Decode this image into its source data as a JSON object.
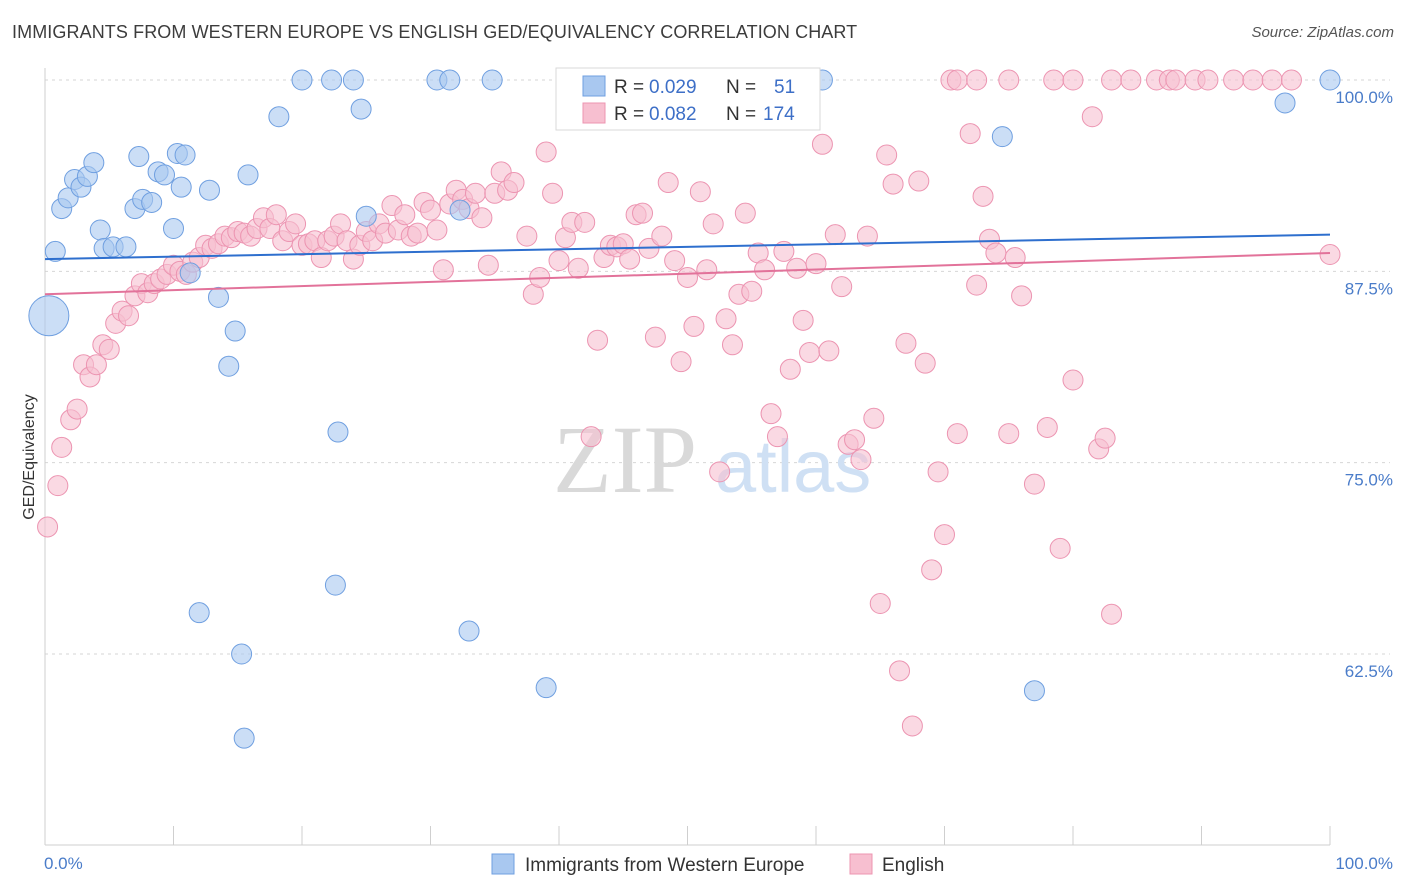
{
  "title": "IMMIGRANTS FROM WESTERN EUROPE VS ENGLISH GED/EQUIVALENCY CORRELATION CHART",
  "source": "Source: ZipAtlas.com",
  "watermark": {
    "zip": "ZIP",
    "atlas": "atlas"
  },
  "colors": {
    "blue_fill": "#a9c8f0",
    "blue_stroke": "#6f9fe0",
    "blue_line": "#2e6fce",
    "pink_fill": "#f7bfd0",
    "pink_stroke": "#ec94b1",
    "pink_line": "#e2729a",
    "grid": "#d6d6d6",
    "tick_text": "#4a7cc9"
  },
  "legend": {
    "series": [
      {
        "r_label": "R =",
        "r_value": "0.029",
        "n_label": "N =",
        "n_value": "51"
      },
      {
        "r_label": "R =",
        "r_value": "0.082",
        "n_label": "N =",
        "n_value": "174"
      }
    ]
  },
  "chart_data": {
    "type": "scatter",
    "title": "IMMIGRANTS FROM WESTERN EUROPE VS ENGLISH GED/EQUIVALENCY CORRELATION CHART",
    "xlabel": "",
    "ylabel": "GED/Equivalency",
    "xlim": [
      0,
      100
    ],
    "ylim": [
      51.5,
      102
    ],
    "x_tick_labels": [
      "0.0%",
      "100.0%"
    ],
    "y_ticks": [
      100,
      87.5,
      75,
      62.5
    ],
    "y_tick_labels": [
      "100.0%",
      "87.5%",
      "75.0%",
      "62.5%"
    ],
    "legend_position": "top-center",
    "series": [
      {
        "name": "Immigrants from Western Europe",
        "color": "blue",
        "trend": {
          "y_at_0": 88.3,
          "y_at_100": 89.9
        },
        "points": [
          [
            0.8,
            88.8
          ],
          [
            1.3,
            91.6
          ],
          [
            1.8,
            92.3
          ],
          [
            2.3,
            93.5
          ],
          [
            2.8,
            93.0
          ],
          [
            3.3,
            93.7
          ],
          [
            3.8,
            94.6
          ],
          [
            4.3,
            90.2
          ],
          [
            4.6,
            89.0
          ],
          [
            5.3,
            89.1
          ],
          [
            6.3,
            89.1
          ],
          [
            7.0,
            91.6
          ],
          [
            7.3,
            95.0
          ],
          [
            7.6,
            92.2
          ],
          [
            8.3,
            92.0
          ],
          [
            8.8,
            94.0
          ],
          [
            9.3,
            93.8
          ],
          [
            10.0,
            90.3
          ],
          [
            10.3,
            95.2
          ],
          [
            10.6,
            93.0
          ],
          [
            10.9,
            95.1
          ],
          [
            11.3,
            87.4
          ],
          [
            12.8,
            92.8
          ],
          [
            13.5,
            85.8
          ],
          [
            14.3,
            81.3
          ],
          [
            14.8,
            83.6
          ],
          [
            15.8,
            93.8
          ],
          [
            18.2,
            97.6
          ],
          [
            20.0,
            100
          ],
          [
            22.3,
            100
          ],
          [
            22.6,
            67.0
          ],
          [
            22.8,
            77.0
          ],
          [
            24.0,
            100
          ],
          [
            24.6,
            98.1
          ],
          [
            25.0,
            91.1
          ],
          [
            30.5,
            100
          ],
          [
            31.5,
            100
          ],
          [
            32.3,
            91.5
          ],
          [
            33.0,
            64.0
          ],
          [
            34.8,
            100
          ],
          [
            39.0,
            60.3
          ],
          [
            15.5,
            57.0
          ],
          [
            15.3,
            62.5
          ],
          [
            12.0,
            65.2
          ],
          [
            77.0,
            60.1
          ],
          [
            59.5,
            100
          ],
          [
            60.5,
            100
          ],
          [
            74.5,
            96.3
          ],
          [
            96.5,
            98.5
          ],
          [
            100,
            100
          ],
          [
            0.3,
            84.6
          ]
        ],
        "sizes": [
          10,
          10,
          10,
          10,
          10,
          10,
          10,
          10,
          10,
          10,
          10,
          10,
          10,
          10,
          10,
          10,
          10,
          10,
          10,
          10,
          10,
          10,
          10,
          10,
          10,
          10,
          10,
          10,
          10,
          10,
          10,
          10,
          10,
          10,
          10,
          10,
          10,
          10,
          10,
          10,
          10,
          10,
          10,
          10,
          10,
          10,
          10,
          10,
          10,
          10,
          20
        ]
      },
      {
        "name": "English",
        "color": "pink",
        "trend": {
          "y_at_0": 86.0,
          "y_at_100": 88.7
        },
        "points": [
          [
            0.2,
            70.8
          ],
          [
            1.0,
            73.5
          ],
          [
            1.3,
            76.0
          ],
          [
            2.0,
            77.8
          ],
          [
            2.5,
            78.5
          ],
          [
            3.0,
            81.4
          ],
          [
            3.5,
            80.6
          ],
          [
            4.0,
            81.4
          ],
          [
            4.5,
            82.7
          ],
          [
            5.0,
            82.4
          ],
          [
            5.5,
            84.1
          ],
          [
            6.0,
            84.9
          ],
          [
            6.5,
            84.6
          ],
          [
            7.0,
            85.9
          ],
          [
            7.5,
            86.7
          ],
          [
            8.0,
            86.1
          ],
          [
            8.5,
            86.7
          ],
          [
            9.0,
            87.0
          ],
          [
            9.5,
            87.3
          ],
          [
            10.0,
            87.9
          ],
          [
            10.5,
            87.5
          ],
          [
            11.0,
            87.3
          ],
          [
            11.5,
            88.1
          ],
          [
            12.0,
            88.4
          ],
          [
            12.5,
            89.2
          ],
          [
            13.0,
            89.0
          ],
          [
            13.5,
            89.3
          ],
          [
            14.0,
            89.8
          ],
          [
            14.5,
            89.7
          ],
          [
            15.0,
            90.1
          ],
          [
            15.5,
            90.0
          ],
          [
            16.0,
            89.8
          ],
          [
            16.5,
            90.3
          ],
          [
            17.0,
            91.0
          ],
          [
            17.5,
            90.3
          ],
          [
            18.0,
            91.2
          ],
          [
            18.5,
            89.5
          ],
          [
            19.0,
            90.1
          ],
          [
            19.5,
            90.6
          ],
          [
            20.0,
            89.2
          ],
          [
            20.5,
            89.3
          ],
          [
            21.0,
            89.5
          ],
          [
            21.5,
            88.4
          ],
          [
            22.0,
            89.5
          ],
          [
            22.5,
            89.8
          ],
          [
            23.0,
            90.6
          ],
          [
            23.5,
            89.5
          ],
          [
            24.0,
            88.3
          ],
          [
            24.5,
            89.2
          ],
          [
            25.0,
            90.1
          ],
          [
            25.5,
            89.5
          ],
          [
            26.0,
            90.6
          ],
          [
            26.5,
            90.0
          ],
          [
            27.0,
            91.8
          ],
          [
            27.5,
            90.2
          ],
          [
            28.0,
            91.2
          ],
          [
            28.5,
            89.8
          ],
          [
            29.0,
            90.0
          ],
          [
            29.5,
            92.0
          ],
          [
            30.0,
            91.5
          ],
          [
            30.5,
            90.2
          ],
          [
            31.0,
            87.6
          ],
          [
            31.5,
            91.9
          ],
          [
            32.0,
            92.8
          ],
          [
            32.5,
            92.2
          ],
          [
            33.0,
            91.6
          ],
          [
            33.5,
            92.6
          ],
          [
            34.0,
            91.0
          ],
          [
            34.5,
            87.9
          ],
          [
            35.0,
            92.6
          ],
          [
            35.5,
            94.0
          ],
          [
            36.0,
            92.8
          ],
          [
            36.5,
            93.3
          ],
          [
            37.5,
            89.8
          ],
          [
            38.0,
            86.0
          ],
          [
            38.5,
            87.1
          ],
          [
            39.0,
            95.3
          ],
          [
            39.5,
            92.6
          ],
          [
            40.0,
            88.2
          ],
          [
            40.5,
            89.7
          ],
          [
            41.0,
            90.7
          ],
          [
            41.5,
            87.7
          ],
          [
            42.0,
            90.7
          ],
          [
            42.5,
            76.7
          ],
          [
            43.0,
            83.0
          ],
          [
            43.5,
            88.4
          ],
          [
            44.0,
            89.2
          ],
          [
            44.5,
            89.1
          ],
          [
            45.0,
            89.3
          ],
          [
            45.5,
            88.3
          ],
          [
            46.0,
            91.2
          ],
          [
            46.5,
            91.3
          ],
          [
            47.0,
            89.0
          ],
          [
            47.5,
            83.2
          ],
          [
            48.0,
            89.8
          ],
          [
            48.5,
            93.3
          ],
          [
            49.0,
            88.2
          ],
          [
            49.5,
            81.6
          ],
          [
            50.0,
            87.1
          ],
          [
            50.5,
            83.9
          ],
          [
            51.0,
            92.7
          ],
          [
            51.5,
            87.6
          ],
          [
            52.0,
            90.6
          ],
          [
            52.5,
            74.4
          ],
          [
            53.0,
            84.4
          ],
          [
            53.5,
            82.7
          ],
          [
            54.0,
            86.0
          ],
          [
            54.5,
            91.3
          ],
          [
            55.0,
            86.2
          ],
          [
            55.5,
            88.7
          ],
          [
            56.0,
            87.6
          ],
          [
            56.5,
            78.2
          ],
          [
            57.0,
            76.7
          ],
          [
            57.5,
            88.8
          ],
          [
            58.0,
            81.1
          ],
          [
            58.5,
            87.7
          ],
          [
            59.0,
            84.3
          ],
          [
            59.5,
            82.2
          ],
          [
            60.0,
            88.0
          ],
          [
            60.5,
            95.8
          ],
          [
            61.0,
            82.3
          ],
          [
            61.5,
            89.9
          ],
          [
            62.0,
            86.5
          ],
          [
            62.5,
            76.2
          ],
          [
            63.0,
            76.5
          ],
          [
            63.5,
            75.2
          ],
          [
            64.0,
            89.8
          ],
          [
            64.5,
            77.9
          ],
          [
            65.0,
            65.8
          ],
          [
            65.5,
            95.1
          ],
          [
            66.0,
            93.2
          ],
          [
            66.5,
            61.4
          ],
          [
            67.0,
            82.8
          ],
          [
            67.5,
            57.8
          ],
          [
            68.0,
            93.4
          ],
          [
            68.5,
            81.5
          ],
          [
            69.0,
            68.0
          ],
          [
            69.5,
            74.4
          ],
          [
            70.0,
            70.3
          ],
          [
            71.0,
            76.9
          ],
          [
            72.0,
            96.5
          ],
          [
            72.5,
            86.6
          ],
          [
            73.0,
            92.4
          ],
          [
            73.5,
            89.6
          ],
          [
            74.0,
            88.7
          ],
          [
            75.0,
            76.9
          ],
          [
            75.5,
            88.4
          ],
          [
            76.0,
            85.9
          ],
          [
            77.0,
            73.6
          ],
          [
            78.0,
            77.3
          ],
          [
            79.0,
            69.4
          ],
          [
            80.0,
            80.4
          ],
          [
            81.5,
            97.6
          ],
          [
            82.0,
            75.9
          ],
          [
            82.5,
            76.6
          ],
          [
            83.0,
            65.1
          ],
          [
            70.5,
            100
          ],
          [
            71.0,
            100
          ],
          [
            72.5,
            100
          ],
          [
            75.0,
            100
          ],
          [
            78.5,
            100
          ],
          [
            80.0,
            100
          ],
          [
            83.0,
            100
          ],
          [
            84.5,
            100
          ],
          [
            86.5,
            100
          ],
          [
            87.5,
            100
          ],
          [
            88.0,
            100
          ],
          [
            89.5,
            100
          ],
          [
            90.5,
            100
          ],
          [
            92.5,
            100
          ],
          [
            94.0,
            100
          ],
          [
            95.5,
            100
          ],
          [
            97.0,
            100
          ],
          [
            100,
            88.6
          ]
        ]
      }
    ]
  },
  "bottom_legend": {
    "blue_label": "Immigrants from Western Europe",
    "pink_label": "English"
  }
}
